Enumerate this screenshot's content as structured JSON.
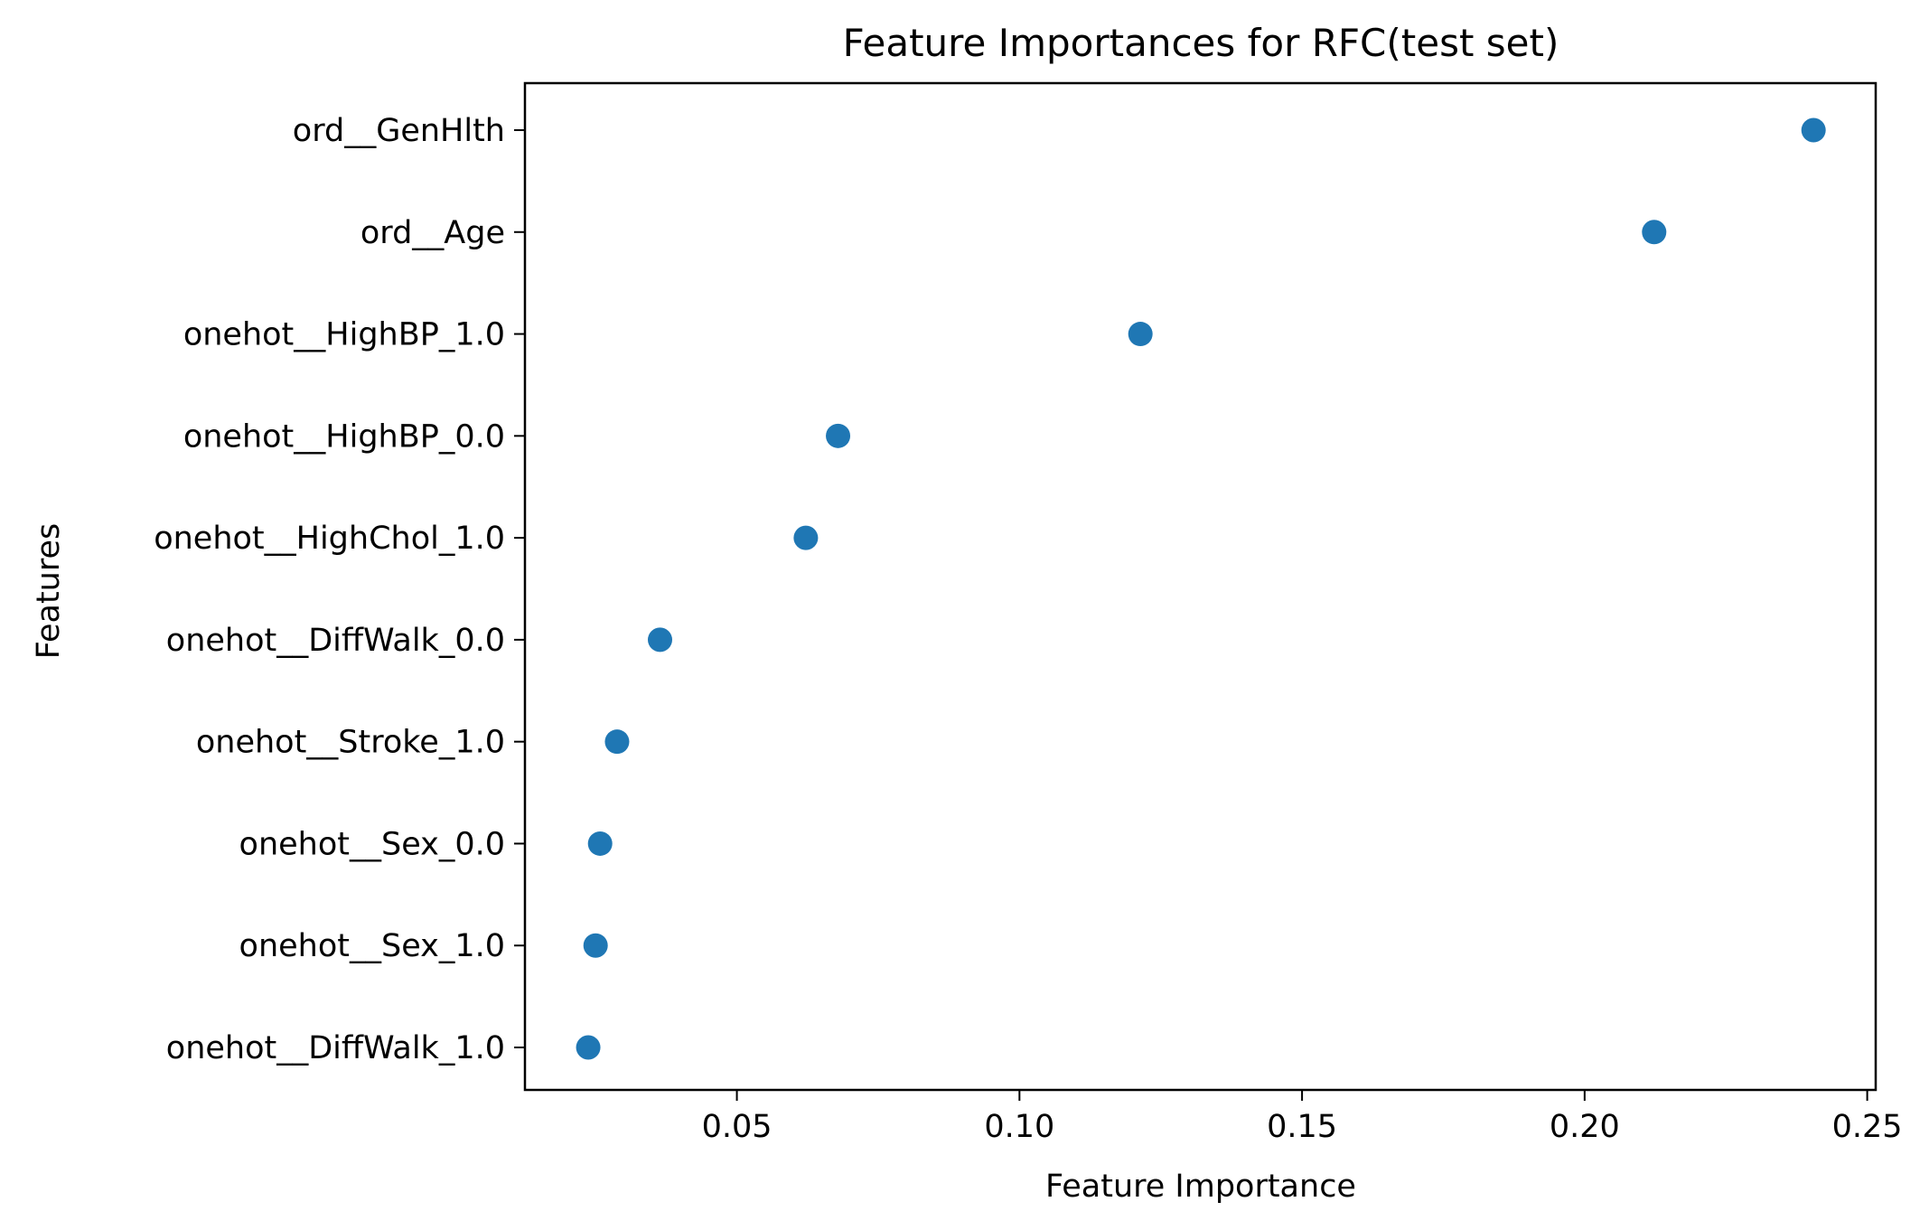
{
  "chart_data": {
    "type": "scatter",
    "title": "Feature Importances for RFC(test set)",
    "xlabel": "Feature Importance",
    "ylabel": "Features",
    "xlim": [
      0.0125,
      0.2515
    ],
    "x_ticks": [
      {
        "value": 0.05,
        "label": "0.05"
      },
      {
        "value": 0.1,
        "label": "0.10"
      },
      {
        "value": 0.15,
        "label": "0.15"
      },
      {
        "value": 0.2,
        "label": "0.20"
      },
      {
        "value": 0.25,
        "label": "0.25"
      }
    ],
    "categories": [
      "ord__GenHlth",
      "ord__Age",
      "onehot__HighBP_1.0",
      "onehot__HighBP_0.0",
      "onehot__HighChol_1.0",
      "onehot__DiffWalk_0.0",
      "onehot__Stroke_1.0",
      "onehot__Sex_0.0",
      "onehot__Sex_1.0",
      "onehot__DiffWalk_1.0"
    ],
    "values": [
      0.2405,
      0.2123,
      0.1214,
      0.0679,
      0.0622,
      0.0364,
      0.0288,
      0.0258,
      0.025,
      0.0237
    ],
    "grid": false,
    "legend": "none",
    "color": "#1f77b4"
  }
}
